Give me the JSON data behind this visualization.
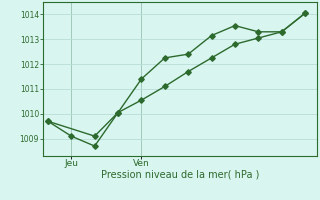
{
  "line1_x": [
    0,
    1,
    2,
    3,
    4,
    5,
    6,
    7,
    8,
    9,
    10,
    11
  ],
  "line1_y": [
    1009.7,
    1009.1,
    1008.7,
    1010.05,
    1011.4,
    1012.25,
    1012.4,
    1013.15,
    1013.55,
    1013.3,
    1013.3,
    1014.05
  ],
  "line2_x": [
    0,
    2,
    3,
    4,
    5,
    6,
    7,
    8,
    9,
    10,
    11
  ],
  "line2_y": [
    1009.7,
    1009.1,
    1010.05,
    1010.55,
    1011.1,
    1011.7,
    1012.25,
    1012.8,
    1013.05,
    1013.3,
    1014.05
  ],
  "line_color": "#2d6a2d",
  "bg_color": "#d8f5f0",
  "grid_color": "#b8dcd6",
  "xlabel": "Pression niveau de la mer( hPa )",
  "yticks": [
    1009,
    1010,
    1011,
    1012,
    1013,
    1014
  ],
  "xtick_positions": [
    1,
    4
  ],
  "xtick_labels": [
    "Jeu",
    "Ven"
  ],
  "vline_x": [
    1,
    4
  ],
  "ylim": [
    1008.3,
    1014.5
  ],
  "xlim": [
    -0.2,
    11.5
  ],
  "marker": "D",
  "markersize": 2.8,
  "linewidth": 1.0,
  "tick_fontsize": 5.5,
  "xlabel_fontsize": 7.0,
  "xtick_fontsize": 6.5
}
